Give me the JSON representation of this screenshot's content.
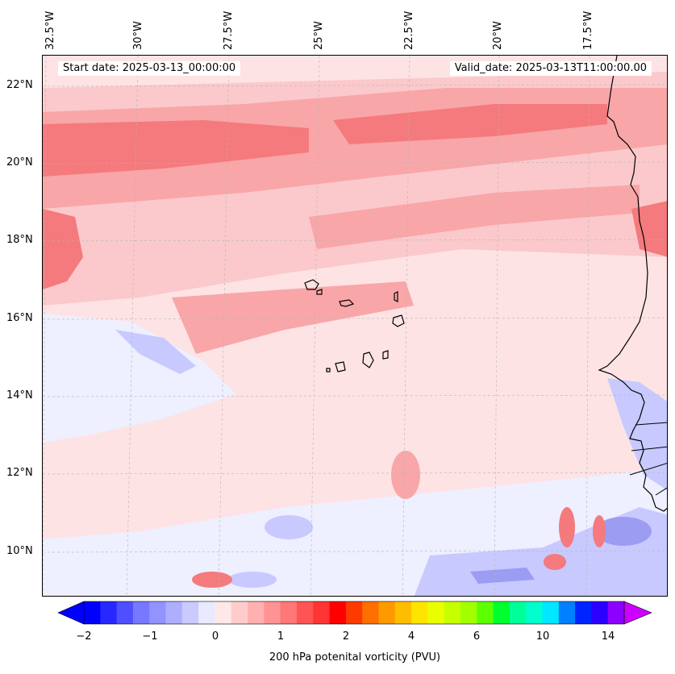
{
  "header": {
    "start_date": "Start date: 2025-03-13_00:00:00",
    "valid_date": "Valid_date: 2025-03-13T11:00:00.00"
  },
  "map": {
    "lon_labels": [
      "32.5°W",
      "30°W",
      "27.5°W",
      "25°W",
      "22.5°W",
      "20°W",
      "17.5°W"
    ],
    "lat_labels": [
      "22°N",
      "20°N",
      "18°N",
      "16°N",
      "14°N",
      "12°N",
      "10°N"
    ],
    "colors": {
      "pos_light": "#fde3e4",
      "pos_mid": "#fbc9cb",
      "pos_strong": "#f9a6a8",
      "pos_max": "#f47a7d",
      "neg_light": "#eeefff",
      "neg_mid": "#c8c9ff",
      "neg_strong": "#9b9cf2",
      "coastline": "#000000"
    }
  },
  "colorbar": {
    "label": "200 hPa potenital vorticity (PVU)",
    "ticks": [
      "−2",
      "−1",
      "0",
      "1",
      "2",
      "4",
      "6",
      "10",
      "14"
    ],
    "colors": [
      "#0000ff",
      "#2727ff",
      "#4f4fff",
      "#7777ff",
      "#9393ff",
      "#aeaeff",
      "#cacaff",
      "#e9e9ff",
      "#ffe8e8",
      "#ffcccc",
      "#ffb0b0",
      "#ff9393",
      "#ff7777",
      "#ff5454",
      "#ff3535",
      "#ff0000",
      "#ff3a00",
      "#ff6e00",
      "#ff9900",
      "#ffbd00",
      "#ffe400",
      "#e9ff00",
      "#c6ff00",
      "#a2ff00",
      "#5cff00",
      "#00ff2c",
      "#00ff99",
      "#00ffcc",
      "#00e8ff",
      "#007fff",
      "#0024ff",
      "#2b00ff",
      "#8d00ff"
    ],
    "under_color": "#0000ff",
    "over_color": "#cc00ff"
  }
}
